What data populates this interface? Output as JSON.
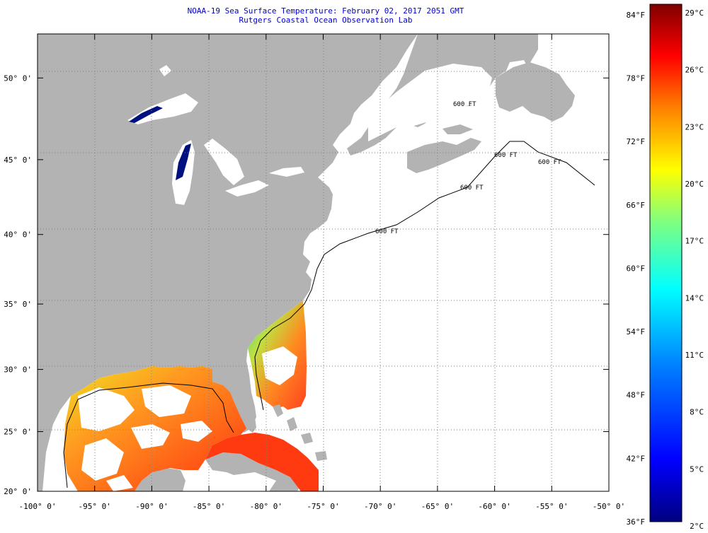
{
  "title": {
    "line1": "NOAA-19 Sea Surface Temperature:  February 02, 2017 2051 GMT",
    "line2": "Rutgers Coastal Ocean Observation Lab"
  },
  "colors": {
    "land": "#b3b3b3",
    "ocean_nodata": "#ffffff",
    "grid": "#7f7f7f",
    "title": "#0000cc"
  },
  "map": {
    "lon_range": [
      -100,
      -50
    ],
    "lat_range": [
      20,
      52.5
    ],
    "lat_labels": [
      "50° 0'",
      "45° 0'",
      "40° 0'",
      "35° 0'",
      "30° 0'",
      "25° 0'",
      "20° 0'"
    ],
    "lat_values": [
      50,
      45,
      40,
      35,
      30,
      25,
      20
    ],
    "lon_labels": [
      "-100° 0'",
      "-95° 0'",
      "-90° 0'",
      "-85° 0'",
      "-80° 0'",
      "-75° 0'",
      "-70° 0'",
      "-65° 0'",
      "-60° 0'",
      "-55° 0'",
      "-50° 0'"
    ],
    "lon_values": [
      -100,
      -95,
      -90,
      -85,
      -80,
      -75,
      -70,
      -65,
      -60,
      -55,
      -50
    ],
    "contour_labels": [
      "600 FT",
      "600 FT",
      "600 FT",
      "600 FT",
      "600 FT"
    ]
  },
  "colorbar": {
    "f_labels": [
      "84°F",
      "78°F",
      "72°F",
      "66°F",
      "60°F",
      "54°F",
      "48°F",
      "42°F",
      "36°F"
    ],
    "c_labels": [
      "29°C",
      "26°C",
      "23°C",
      "20°C",
      "17°C",
      "14°C",
      "11°C",
      "8°C",
      "5°C",
      "2°C"
    ],
    "range_f": [
      36,
      85
    ],
    "stops": [
      "#00007f",
      "#0000ff",
      "#007fff",
      "#00ffff",
      "#7fff7f",
      "#ffff00",
      "#ff7f00",
      "#ff0000",
      "#7f0000"
    ]
  }
}
